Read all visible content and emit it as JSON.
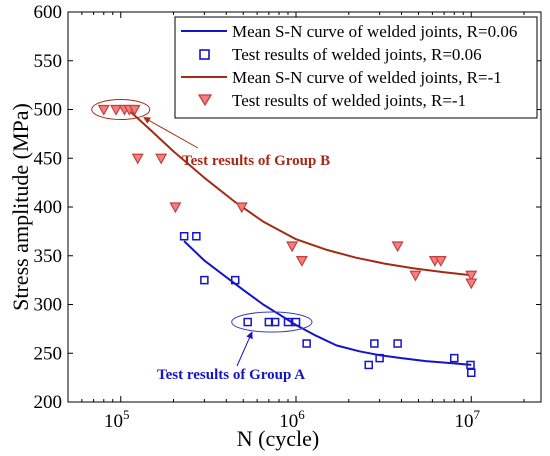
{
  "chart_data": {
    "type": "scatter",
    "xscale": "log",
    "xlim": [
      50000,
      25000000
    ],
    "ylim": [
      200,
      600
    ],
    "xlabel": "N (cycle)",
    "ylabel": "Stress amplitude (MPa)",
    "grid": false,
    "legend_position": "top-right",
    "x_ticks": [
      {
        "value": 100000,
        "base": "10",
        "exp": "5"
      },
      {
        "value": 1000000,
        "base": "10",
        "exp": "6"
      },
      {
        "value": 10000000,
        "base": "10",
        "exp": "7"
      }
    ],
    "y_ticks": [
      "200",
      "250",
      "300",
      "350",
      "400",
      "450",
      "500",
      "550",
      "600"
    ],
    "series": [
      {
        "name": "Mean S-N curve of welded joints, R=0.06",
        "kind": "line",
        "color": "#1414c8",
        "x": [
          230000,
          300000,
          400000,
          500000,
          650000,
          800000,
          1000000,
          1300000,
          1700000,
          2300000,
          3000000,
          4000000,
          5500000,
          7500000,
          10000000
        ],
        "y": [
          365,
          345,
          328,
          315,
          300,
          290,
          279,
          268,
          258,
          252,
          248,
          245,
          242,
          240,
          238
        ]
      },
      {
        "name": "Test results of welded joints, R=0.06",
        "kind": "scatter",
        "marker": "square",
        "color": "#1414c8",
        "x": [
          230000,
          270000,
          300000,
          450000,
          530000,
          700000,
          760000,
          900000,
          1000000,
          1150000,
          2600000,
          2800000,
          3000000,
          3800000,
          8000000,
          9900000,
          10000000
        ],
        "y": [
          370,
          370,
          325,
          325,
          282,
          282,
          282,
          282,
          282,
          260,
          238,
          260,
          245,
          260,
          245,
          238,
          230
        ]
      },
      {
        "name": "Mean S-N curve of welded joints, R=-1",
        "kind": "line",
        "color": "#a52a14",
        "x": [
          110000,
          150000,
          200000,
          300000,
          450000,
          650000,
          1000000,
          1500000,
          2200000,
          3200000,
          4700000,
          7000000,
          10000000
        ],
        "y": [
          500,
          478,
          457,
          430,
          405,
          385,
          367,
          356,
          348,
          342,
          337,
          333,
          330
        ]
      },
      {
        "name": "Test results of welded joints, R=-1",
        "kind": "scatter",
        "marker": "triangle-down",
        "color": "#c83c3c",
        "x": [
          80000,
          94000,
          105000,
          112000,
          120000,
          125000,
          170000,
          205000,
          490000,
          950000,
          1080000,
          3800000,
          4800000,
          6200000,
          6700000,
          10000000,
          10000000
        ],
        "y": [
          500,
          500,
          500,
          500,
          500,
          450,
          450,
          400,
          400,
          360,
          345,
          360,
          330,
          345,
          345,
          330,
          322
        ]
      }
    ],
    "annotations": [
      {
        "text": "Test results of Group B",
        "color": "#a52a14"
      },
      {
        "text": "Test results of Group A",
        "color": "#1414c8"
      }
    ]
  }
}
